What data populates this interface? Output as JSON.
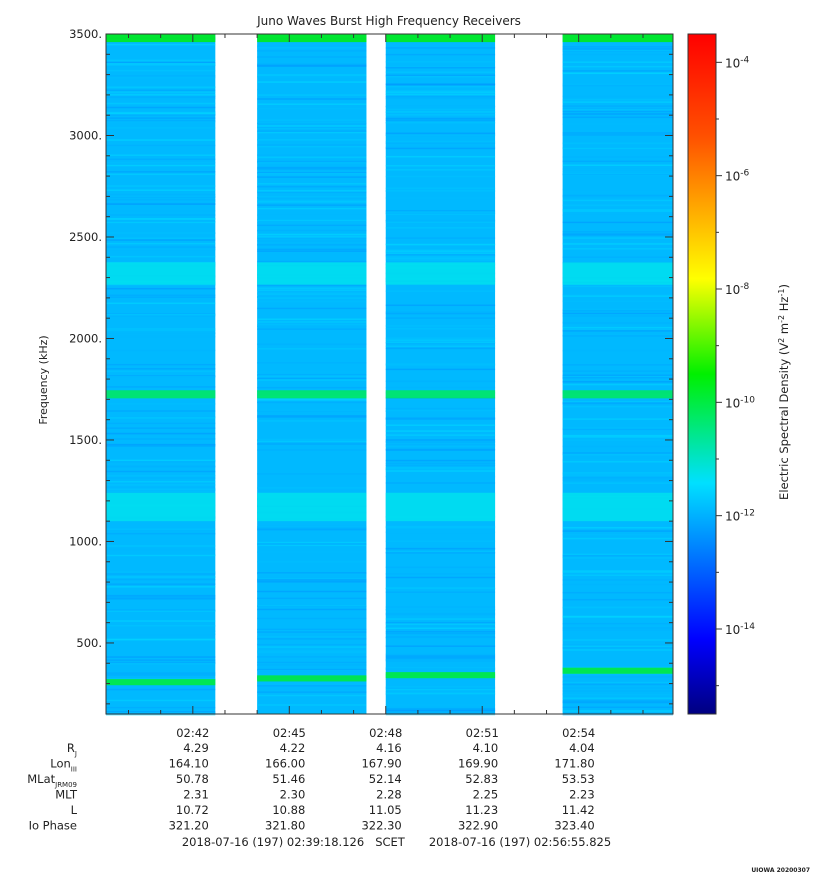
{
  "chart_data": {
    "type": "heatmap",
    "title": "Juno Waves Burst High Frequency Receivers",
    "ylabel": "Frequency (kHz)",
    "ylim": [
      150,
      3500
    ],
    "y_ticks": [
      500,
      1000,
      1500,
      2000,
      2500,
      3000,
      3500
    ],
    "y_tick_labels": [
      "500.",
      "1000.",
      "1500.",
      "2000.",
      "2500.",
      "3000.",
      "3500."
    ],
    "x_time_range": [
      "02:39:18",
      "02:56:56"
    ],
    "x_ticks": [
      "02:42",
      "02:45",
      "02:48",
      "02:51",
      "02:54"
    ],
    "data_segments": [
      {
        "start": "02:39:18",
        "end": "02:42:42"
      },
      {
        "start": "02:44:00",
        "end": "02:47:24"
      },
      {
        "start": "02:48:00",
        "end": "02:51:24"
      },
      {
        "start": "02:53:30",
        "end": "02:56:56"
      }
    ],
    "dominant_background_log10": -11.9,
    "emission_bands": [
      {
        "name": "top band",
        "freq_khz": 3480,
        "width_khz": 40,
        "log10_psd": -9.6
      },
      {
        "name": "2300 band",
        "freq_khz": 2320,
        "width_khz": 110,
        "log10_psd": -11.3
      },
      {
        "name": "1720 band",
        "freq_khz": 1725,
        "width_khz": 40,
        "log10_psd": -10.2
      },
      {
        "name": "1170 band",
        "freq_khz": 1170,
        "width_khz": 140,
        "log10_psd": -11.3
      },
      {
        "name": "low tone",
        "freq_khz_start": 300,
        "freq_khz_end": 370,
        "width_khz": 30,
        "log10_psd": -9.9
      }
    ],
    "colorbar": {
      "label": "Electric Spectral Density",
      "units_prefix": "(V",
      "units_sup1": "2",
      "units_mid": " m",
      "units_sup2": "-2",
      "units_mid2": " Hz",
      "units_sup3": "-1",
      "units_suffix": ")",
      "range_log10": [
        -15.5,
        -3.5
      ],
      "tick_exponents": [
        "-4",
        "-6",
        "-8",
        "-10",
        "-12",
        "-14"
      ],
      "tick_values": [
        -4,
        -6,
        -8,
        -10,
        -12,
        -14
      ],
      "tick_base": "10"
    },
    "ephemeris": {
      "rows": [
        {
          "label": "R",
          "sub": "J",
          "values": [
            "4.29",
            "4.22",
            "4.16",
            "4.10",
            "4.04"
          ]
        },
        {
          "label": "Lon",
          "sub": "III",
          "values": [
            "164.10",
            "166.00",
            "167.90",
            "169.90",
            "171.80"
          ]
        },
        {
          "label": "MLat",
          "sub": "JRM09",
          "values": [
            "50.78",
            "51.46",
            "52.14",
            "52.83",
            "53.53"
          ]
        },
        {
          "label": "MLT",
          "sub": "",
          "values": [
            "2.31",
            "2.30",
            "2.28",
            "2.25",
            "2.23"
          ]
        },
        {
          "label": "L",
          "sub": "",
          "values": [
            "10.72",
            "10.88",
            "11.05",
            "11.23",
            "11.42"
          ]
        },
        {
          "label": "Io Phase",
          "sub": "",
          "values": [
            "321.20",
            "321.80",
            "322.30",
            "322.90",
            "323.40"
          ]
        }
      ]
    },
    "time_start": "2018-07-16 (197) 02:39:18.126",
    "time_label": "SCET",
    "time_end": "2018-07-16 (197) 02:56:55.825",
    "credit": "UIOWA 20200307"
  }
}
